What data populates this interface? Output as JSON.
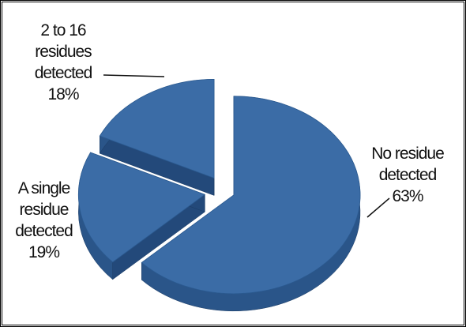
{
  "chart_data": {
    "type": "pie",
    "categories": [
      "No residue detected",
      "A single residue detected",
      "2 to 16 residues detected"
    ],
    "values": [
      63,
      19,
      18
    ],
    "value_labels": [
      "63%",
      "19%",
      "18%"
    ],
    "color": "#3b6ca6"
  }
}
